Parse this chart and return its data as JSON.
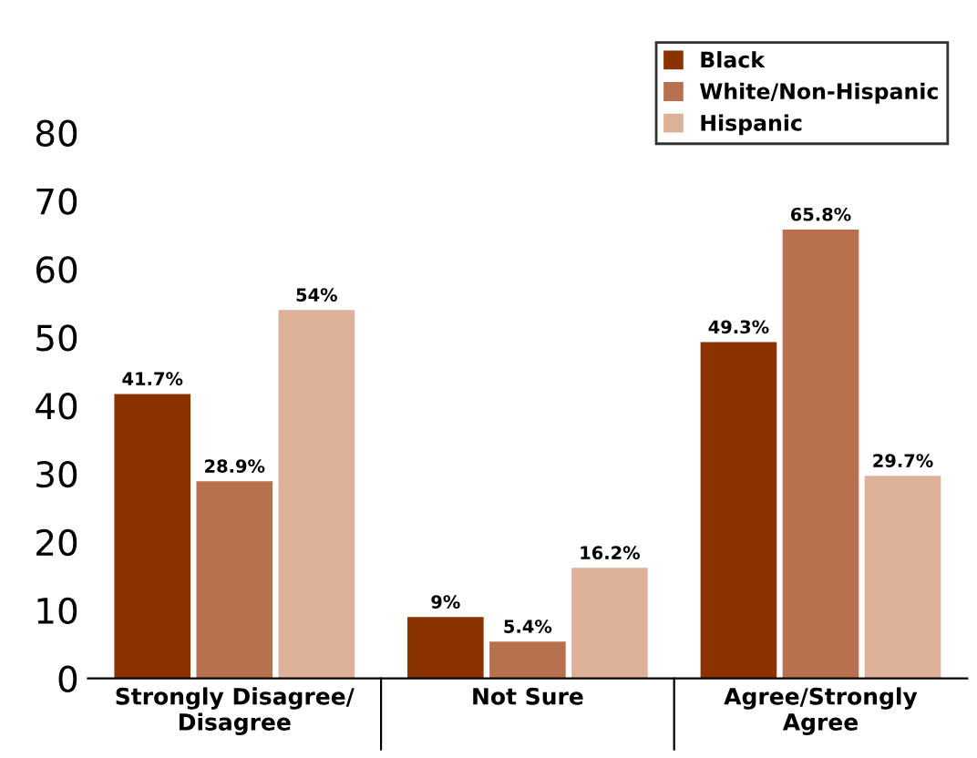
{
  "chart_data": {
    "type": "bar",
    "categories": [
      "Strongly Disagree/\nDisagree",
      "Not Sure",
      "Agree/Strongly\nAgree"
    ],
    "series": [
      {
        "name": "Black",
        "color": "#8a3200",
        "values": [
          41.7,
          9,
          49.3
        ],
        "value_labels": [
          "41.7%",
          "9%",
          "49.3%"
        ]
      },
      {
        "name": "White/Non-Hispanic",
        "color": "#b8714f",
        "values": [
          28.9,
          5.4,
          65.8
        ],
        "value_labels": [
          "28.9%",
          "5.4%",
          "65.8%"
        ]
      },
      {
        "name": "Hispanic",
        "color": "#dcb197",
        "values": [
          54,
          16.2,
          29.7
        ],
        "value_labels": [
          "54%",
          "16.2%",
          "29.7%"
        ]
      }
    ],
    "ylim": [
      0,
      80
    ],
    "yticks": [
      0,
      10,
      20,
      30,
      40,
      50,
      60,
      70,
      80
    ],
    "grid": false,
    "legend": "top right"
  }
}
